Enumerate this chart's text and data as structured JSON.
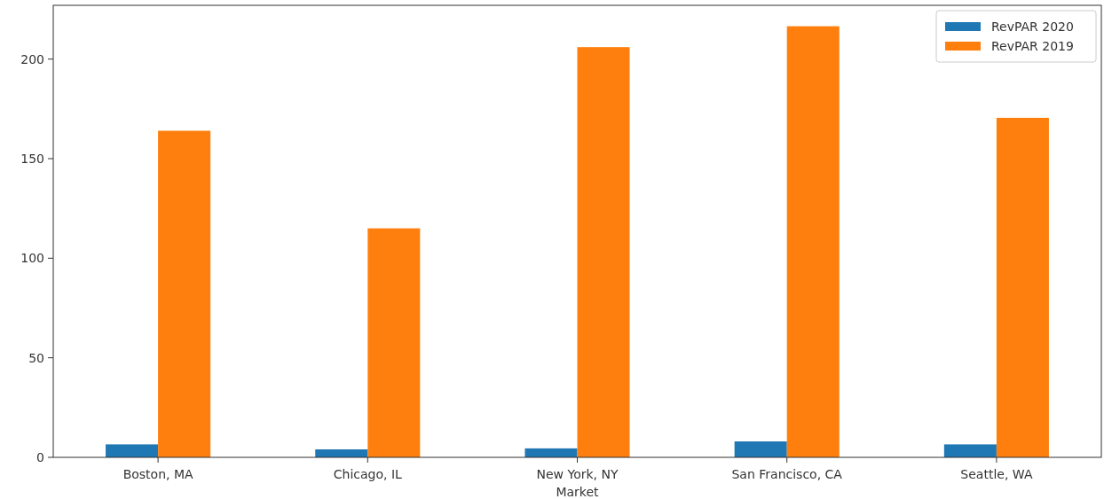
{
  "chart_data": {
    "type": "bar",
    "xlabel": "Market",
    "categories": [
      "Boston, MA",
      "Chicago, IL",
      "New York, NY",
      "San Francisco, CA",
      "Seattle, WA"
    ],
    "series": [
      {
        "name": "RevPAR 2020",
        "color": "#1f77b4",
        "values": [
          6.5,
          4,
          4.5,
          8,
          6.5
        ]
      },
      {
        "name": "RevPAR 2019",
        "color": "#ff7f0e",
        "values": [
          164,
          115,
          206,
          216.5,
          170.5
        ]
      }
    ],
    "ylim": [
      0,
      227
    ],
    "yticks": [
      0,
      50,
      100,
      150,
      200
    ],
    "legend": "top right"
  }
}
